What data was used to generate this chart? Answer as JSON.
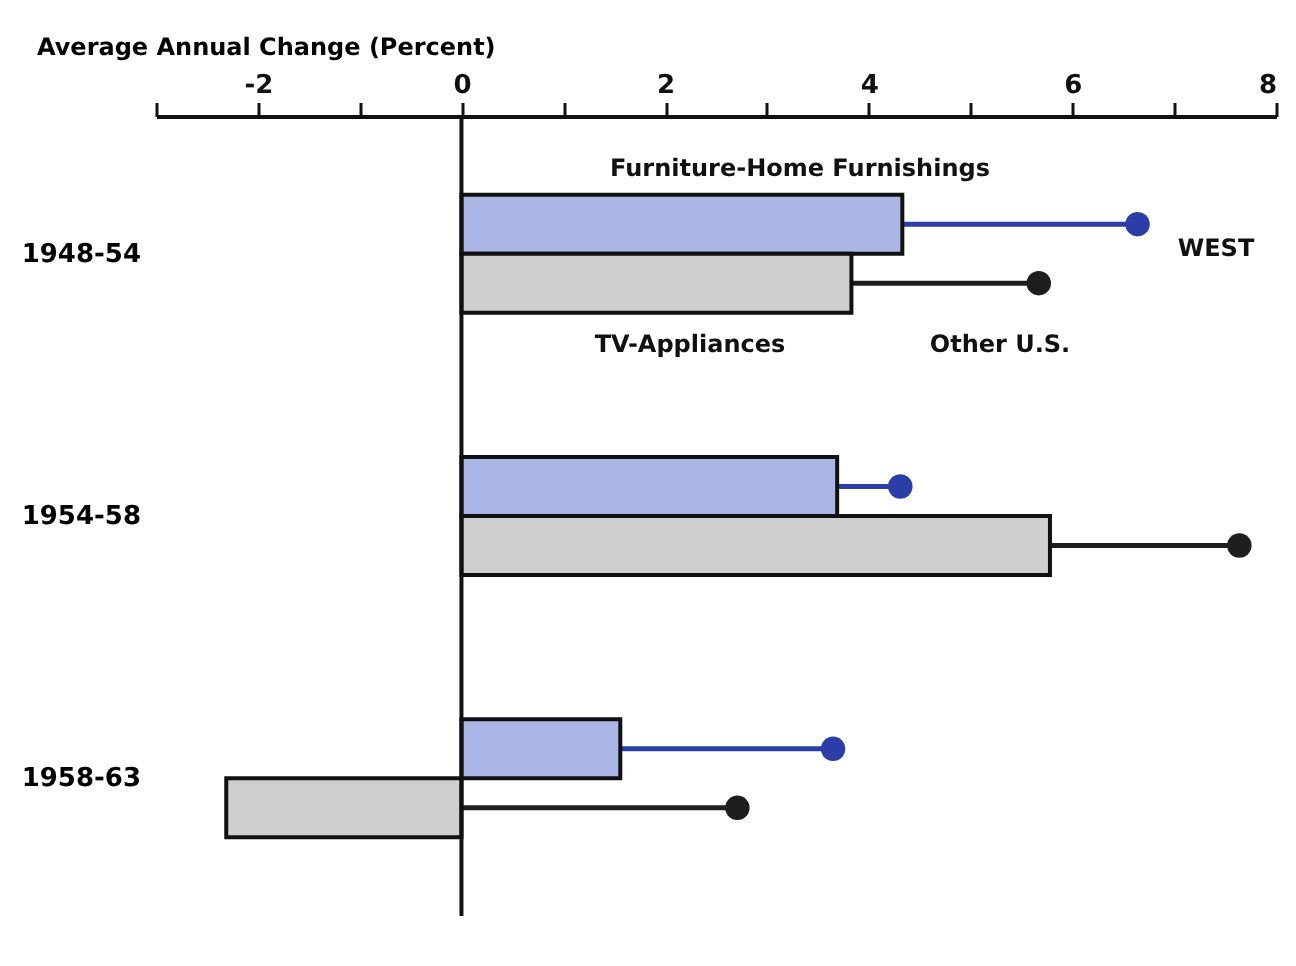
{
  "chart_data": {
    "type": "bar",
    "orientation": "horizontal",
    "xlabel": "Average Annual Change (Percent)",
    "categories": [
      "1948-54",
      "1954-58",
      "1958-63"
    ],
    "series": [
      {
        "type": "bar",
        "color": "#aab6e6",
        "values": [
          4.33,
          3.69,
          1.56
        ]
      },
      {
        "type": "bar",
        "color": "#cfcfcf",
        "values": [
          3.83,
          5.78,
          -2.31
        ]
      },
      {
        "type": "lollipop",
        "color": "#2b3da6",
        "values": [
          6.64,
          4.31,
          3.65
        ]
      },
      {
        "type": "lollipop",
        "color": "#1e1e1e",
        "values": [
          5.67,
          7.64,
          2.71
        ]
      }
    ],
    "xlim": [
      -3,
      8
    ],
    "xticks": [
      {
        "value": -3,
        "label": null
      },
      -2,
      {
        "value": -1,
        "label": null
      },
      0,
      {
        "value": 1,
        "label": null
      },
      2,
      {
        "value": 3,
        "label": null
      },
      4,
      {
        "value": 5,
        "label": null
      },
      6,
      {
        "value": 7,
        "label": null
      },
      8
    ],
    "ref_lines": [
      {
        "axis": "x",
        "value": 0
      }
    ],
    "annotations": [
      "Furniture-Home Furnishings",
      "TV-Appliances",
      "Other U.S.",
      "WEST"
    ],
    "grid": false,
    "marker": "circle"
  }
}
